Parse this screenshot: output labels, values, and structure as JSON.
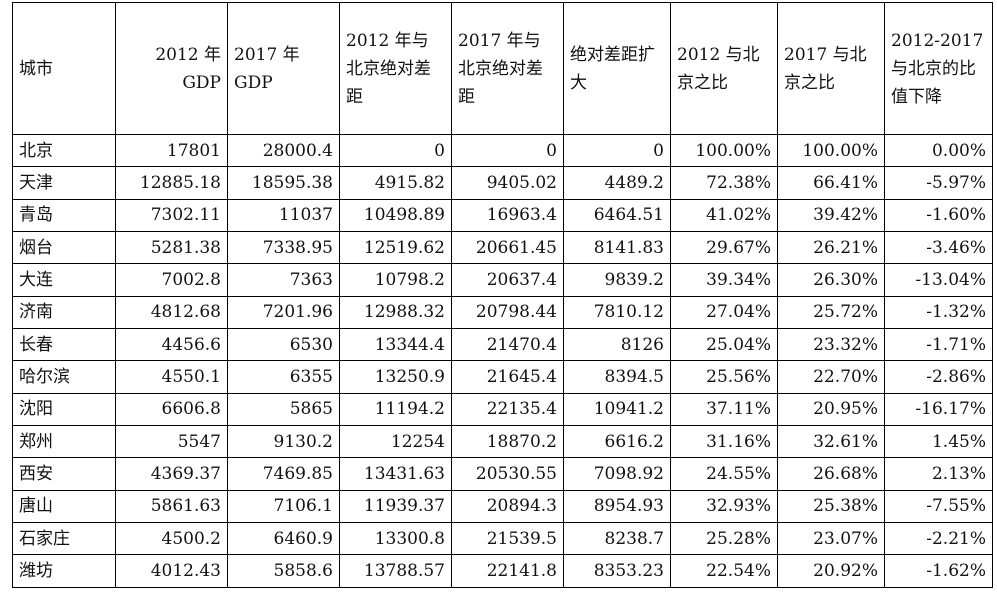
{
  "table": {
    "headers": [
      "城市",
      "2012 年 GDP",
      "2017 年 GDP",
      "2012 年与北京绝对差距",
      "2017 年与北京绝对差距",
      "绝对差距扩大",
      "2012 与北京之比",
      "2017 与北京之比",
      "2012-2017 与北京的比值下降"
    ],
    "rows": [
      [
        "北京",
        "17801",
        "28000.4",
        "0",
        "0",
        "0",
        "100.00%",
        "100.00%",
        "0.00%"
      ],
      [
        "天津",
        "12885.18",
        "18595.38",
        "4915.82",
        "9405.02",
        "4489.2",
        "72.38%",
        "66.41%",
        "-5.97%"
      ],
      [
        "青岛",
        "7302.11",
        "11037",
        "10498.89",
        "16963.4",
        "6464.51",
        "41.02%",
        "39.42%",
        "-1.60%"
      ],
      [
        "烟台",
        "5281.38",
        "7338.95",
        "12519.62",
        "20661.45",
        "8141.83",
        "29.67%",
        "26.21%",
        "-3.46%"
      ],
      [
        "大连",
        "7002.8",
        "7363",
        "10798.2",
        "20637.4",
        "9839.2",
        "39.34%",
        "26.30%",
        "-13.04%"
      ],
      [
        "济南",
        "4812.68",
        "7201.96",
        "12988.32",
        "20798.44",
        "7810.12",
        "27.04%",
        "25.72%",
        "-1.32%"
      ],
      [
        "长春",
        "4456.6",
        "6530",
        "13344.4",
        "21470.4",
        "8126",
        "25.04%",
        "23.32%",
        "-1.71%"
      ],
      [
        "哈尔滨",
        "4550.1",
        "6355",
        "13250.9",
        "21645.4",
        "8394.5",
        "25.56%",
        "22.70%",
        "-2.86%"
      ],
      [
        "沈阳",
        "6606.8",
        "5865",
        "11194.2",
        "22135.4",
        "10941.2",
        "37.11%",
        "20.95%",
        "-16.17%"
      ],
      [
        "郑州",
        "5547",
        "9130.2",
        "12254",
        "18870.2",
        "6616.2",
        "31.16%",
        "32.61%",
        "1.45%"
      ],
      [
        "西安",
        "4369.37",
        "7469.85",
        "13431.63",
        "20530.55",
        "7098.92",
        "24.55%",
        "26.68%",
        "2.13%"
      ],
      [
        "唐山",
        "5861.63",
        "7106.1",
        "11939.37",
        "20894.3",
        "8954.93",
        "32.93%",
        "25.38%",
        "-7.55%"
      ],
      [
        "石家庄",
        "4500.2",
        "6460.9",
        "13300.8",
        "21539.5",
        "8238.7",
        "25.28%",
        "23.07%",
        "-2.21%"
      ],
      [
        "潍坊",
        "4012.43",
        "5858.6",
        "13788.57",
        "22141.8",
        "8353.23",
        "22.54%",
        "20.92%",
        "-1.62%"
      ]
    ]
  }
}
